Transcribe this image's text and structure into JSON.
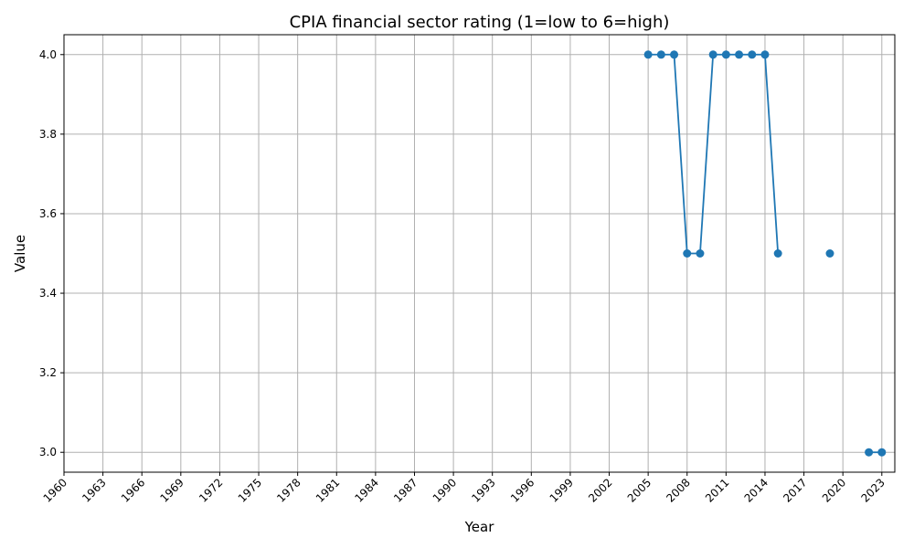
{
  "chart_data": {
    "type": "line",
    "title": "CPIA financial sector rating (1=low to 6=high)",
    "xlabel": "Year",
    "ylabel": "Value",
    "xlim": [
      1960,
      2024
    ],
    "ylim": [
      2.95,
      4.05
    ],
    "x_ticks": [
      "1960",
      "1963",
      "1966",
      "1969",
      "1972",
      "1975",
      "1978",
      "1981",
      "1984",
      "1987",
      "1990",
      "1993",
      "1996",
      "1999",
      "2002",
      "2005",
      "2008",
      "2011",
      "2014",
      "2017",
      "2020",
      "2023"
    ],
    "y_ticks": [
      "3.0",
      "3.2",
      "3.4",
      "3.6",
      "3.8",
      "4.0"
    ],
    "grid": true,
    "colors": {
      "series": "#1f77b4",
      "grid": "#b0b0b0"
    },
    "series": [
      {
        "x": [
          2005,
          2006,
          2007,
          2008,
          2009,
          2010,
          2011,
          2012,
          2013,
          2014,
          2015,
          2016,
          2017,
          2018,
          2019,
          2020,
          2021,
          2022,
          2023
        ],
        "y": [
          4.0,
          4.0,
          4.0,
          3.5,
          3.5,
          4.0,
          4.0,
          4.0,
          4.0,
          4.0,
          3.5,
          null,
          null,
          null,
          3.5,
          null,
          null,
          3.0,
          3.0
        ]
      }
    ]
  }
}
